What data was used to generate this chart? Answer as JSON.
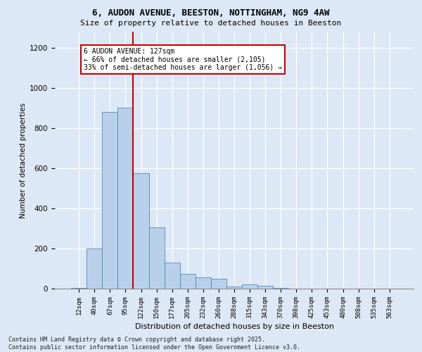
{
  "title1": "6, AUDON AVENUE, BEESTON, NOTTINGHAM, NG9 4AW",
  "title2": "Size of property relative to detached houses in Beeston",
  "xlabel": "Distribution of detached houses by size in Beeston",
  "ylabel": "Number of detached properties",
  "categories": [
    "12sqm",
    "40sqm",
    "67sqm",
    "95sqm",
    "122sqm",
    "150sqm",
    "177sqm",
    "205sqm",
    "232sqm",
    "260sqm",
    "288sqm",
    "315sqm",
    "343sqm",
    "370sqm",
    "398sqm",
    "425sqm",
    "453sqm",
    "480sqm",
    "508sqm",
    "535sqm",
    "563sqm"
  ],
  "values": [
    5,
    200,
    880,
    900,
    575,
    305,
    130,
    75,
    55,
    50,
    10,
    20,
    15,
    3,
    1,
    1,
    1,
    0,
    0,
    0,
    0
  ],
  "bar_color": "#b8d0ea",
  "bar_edge_color": "#5588bb",
  "vline_index": 4,
  "vline_color": "#cc0000",
  "annotation_line1": "6 AUDON AVENUE: 127sqm",
  "annotation_line2": "← 66% of detached houses are smaller (2,105)",
  "annotation_line3": "33% of semi-detached houses are larger (1,056) →",
  "ylim": [
    0,
    1280
  ],
  "yticks": [
    0,
    200,
    400,
    600,
    800,
    1000,
    1200
  ],
  "background_color": "#dce8f5",
  "grid_color": "#ffffff",
  "footer1": "Contains HM Land Registry data © Crown copyright and database right 2025.",
  "footer2": "Contains public sector information licensed under the Open Government Licence v3.0."
}
